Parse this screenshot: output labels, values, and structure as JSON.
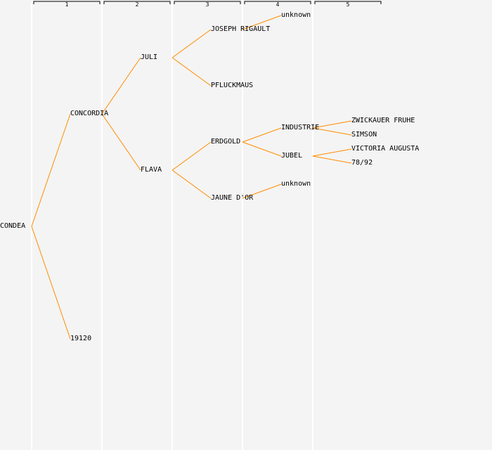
{
  "generations": [
    "1",
    "2",
    "3",
    "4",
    "5"
  ],
  "colors": {
    "edge": "#ff8c00",
    "background": "#f4f4f4",
    "column_line": "#ffffff"
  },
  "nodes": {
    "condea": "CONDEA",
    "concordia": "CONCORDIA",
    "n19120": "19120",
    "juli": "JULI",
    "flava": "FLAVA",
    "joseph_rigault": "JOSEPH RIGAULT",
    "pfluckmaus": "PFLUCKMAUS",
    "erdgold": "ERDGOLD",
    "jaune_dor": "JAUNE D'OR",
    "unknown_1": "unknown",
    "industrie": "INDUSTRIE",
    "jubel": "JUBEL",
    "unknown_2": "unknown",
    "zwickauer_fruhe": "ZWICKAUER FRUHE",
    "simson": "SIMSON",
    "victoria_augusta": "VICTORIA AUGUSTA",
    "n78_92": "78/92"
  },
  "edges": [
    [
      "condea",
      "concordia"
    ],
    [
      "condea",
      "n19120"
    ],
    [
      "concordia",
      "juli"
    ],
    [
      "concordia",
      "flava"
    ],
    [
      "juli",
      "joseph_rigault"
    ],
    [
      "juli",
      "pfluckmaus"
    ],
    [
      "flava",
      "erdgold"
    ],
    [
      "flava",
      "jaune_dor"
    ],
    [
      "joseph_rigault",
      "unknown_1"
    ],
    [
      "erdgold",
      "industrie"
    ],
    [
      "erdgold",
      "jubel"
    ],
    [
      "jaune_dor",
      "unknown_2"
    ],
    [
      "industrie",
      "zwickauer_fruhe"
    ],
    [
      "industrie",
      "simson"
    ],
    [
      "jubel",
      "victoria_augusta"
    ],
    [
      "jubel",
      "n78_92"
    ]
  ]
}
